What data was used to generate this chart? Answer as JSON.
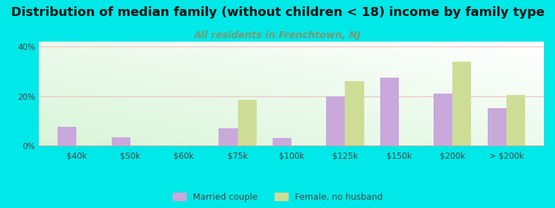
{
  "title": "Distribution of median family (without children < 18) income by family type",
  "subtitle": "All residents in Frenchtown, NJ",
  "categories": [
    "$40k",
    "$50k",
    "$60k",
    "$75k",
    "$100k",
    "$125k",
    "$150k",
    "$200k",
    "> $200k"
  ],
  "married_couple": [
    7.5,
    3.5,
    0,
    7.0,
    3.0,
    20.0,
    27.5,
    21.0,
    15.0
  ],
  "female_no_husband": [
    0,
    0,
    0,
    18.5,
    0,
    26.0,
    0,
    34.0,
    20.5
  ],
  "married_color": "#c9a8dc",
  "female_color": "#cedd96",
  "background_color": "#00e8e8",
  "title_fontsize": 13,
  "subtitle_fontsize": 10,
  "subtitle_color": "#7a9a70",
  "ylim": [
    0,
    42
  ],
  "yticks": [
    0,
    20,
    40
  ],
  "ytick_labels": [
    "0%",
    "20%",
    "40%"
  ],
  "bar_width": 0.35,
  "legend_married": "Married couple",
  "legend_female": "Female, no husband"
}
